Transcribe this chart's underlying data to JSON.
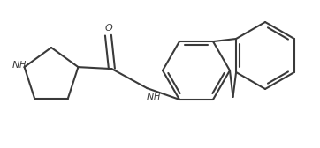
{
  "bg_color": "#ffffff",
  "bond_color": "#3a3a3a",
  "text_color": "#3a3a3a",
  "lw": 1.5,
  "figsize": [
    3.62,
    1.68
  ],
  "dpi": 100,
  "xlim": [
    0,
    362
  ],
  "ylim": [
    0,
    168
  ]
}
